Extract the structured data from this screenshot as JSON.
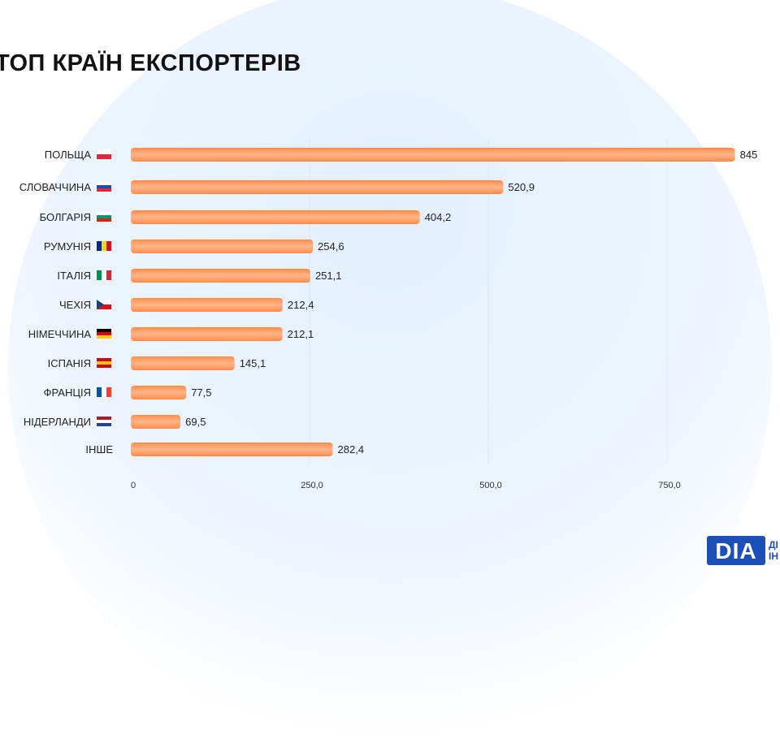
{
  "title": "ТОП КРАЇН ЕКСПОРТЕРІВ",
  "logo": {
    "text": "DIA",
    "side_top": "ДІ",
    "side_bottom": "ІН"
  },
  "colors": {
    "bar": "#ff9a5c",
    "bar_light": "#ffc29a",
    "grid": "#dde6f2"
  },
  "chart_data": {
    "type": "bar",
    "orientation": "horizontal",
    "title": "ТОП КРАЇН ЕКСПОРТЕРІВ",
    "categories": [
      "ПОЛЬЩА",
      "СЛОВАЧЧИНА",
      "БОЛГАРІЯ",
      "РУМУНІЯ",
      "ІТАЛІЯ",
      "ЧЕХІЯ",
      "НІМЕЧЧИНА",
      "ІСПАНІЯ",
      "ФРАНЦІЯ",
      "НІДЕРЛАНДИ",
      "ІНШЕ"
    ],
    "flags": [
      "pl",
      "sk",
      "bg",
      "ro",
      "it",
      "cz",
      "de",
      "es",
      "fr",
      "nl",
      ""
    ],
    "values": [
      845,
      520.9,
      404.2,
      254.6,
      251.1,
      212.4,
      212.1,
      145.1,
      77.5,
      69.5,
      282.4
    ],
    "labels": [
      "845",
      "520,9",
      "404,2",
      "254,6",
      "251,1",
      "212,4",
      "212,1",
      "145,1",
      "77,5",
      "69,5",
      "282,4"
    ],
    "xticks": [
      0,
      250,
      500,
      750
    ],
    "xtick_labels": [
      "0",
      "250,0",
      "500,0",
      "750,0"
    ],
    "xlim": [
      0,
      1000
    ],
    "grid": true
  }
}
